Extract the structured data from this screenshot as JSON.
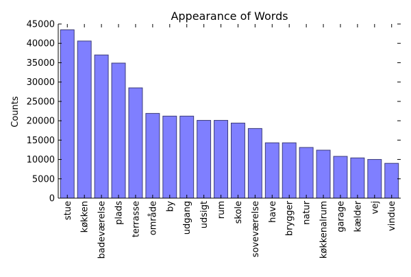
{
  "chart_data": {
    "type": "bar",
    "title": "Appearance of Words",
    "xlabel": "",
    "ylabel": "Counts",
    "ylim": [
      0,
      45000
    ],
    "yticks": [
      0,
      5000,
      10000,
      15000,
      20000,
      25000,
      30000,
      35000,
      40000,
      45000
    ],
    "ytick_labels": [
      "0",
      "5000",
      "10000",
      "15000",
      "20000",
      "25000",
      "30000",
      "35000",
      "40000",
      "45000"
    ],
    "categories": [
      "stue",
      "køkken",
      "badeværelse",
      "plads",
      "terrasse",
      "område",
      "by",
      "udgang",
      "udsigt",
      "rum",
      "skole",
      "soveværelse",
      "have",
      "brygger",
      "natur",
      "køkkenalrum",
      "garage",
      "kælder",
      "vej",
      "vindue"
    ],
    "values": [
      43500,
      40600,
      37000,
      34900,
      28500,
      21900,
      21200,
      21200,
      20100,
      20100,
      19400,
      18000,
      14300,
      14300,
      13100,
      12400,
      10800,
      10400,
      10000,
      9000
    ],
    "grid": false,
    "legend": "none",
    "colors": {
      "bar_fill": "#7f7fff",
      "bar_edge": "#3c3c78",
      "axis": "#000000"
    }
  }
}
